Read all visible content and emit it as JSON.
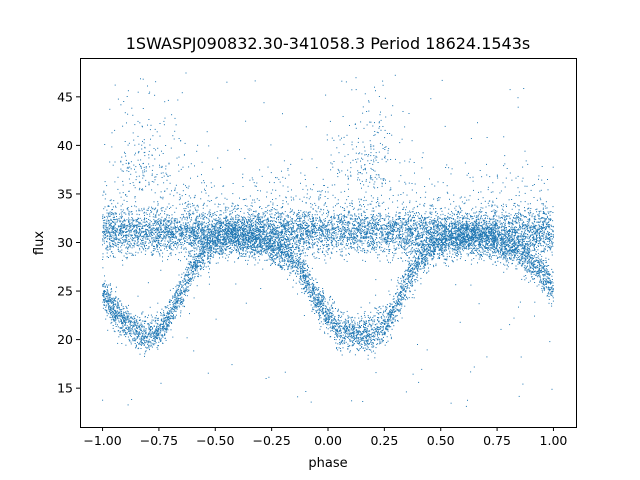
{
  "chart_data": {
    "type": "scatter",
    "title": "1SWASPJ090832.30-341058.3 Period 18624.1543s",
    "xlabel": "phase",
    "ylabel": "flux",
    "xlim": [
      -1.1,
      1.1
    ],
    "ylim": [
      11,
      49
    ],
    "xticks": [
      -1.0,
      -0.75,
      -0.5,
      -0.25,
      0.0,
      0.25,
      0.5,
      0.75,
      1.0
    ],
    "xtick_labels": [
      "−1.00",
      "−0.75",
      "−0.50",
      "−0.25",
      "0.00",
      "0.25",
      "0.50",
      "0.75",
      "1.00"
    ],
    "yticks": [
      15,
      20,
      25,
      30,
      35,
      40,
      45
    ],
    "ytick_labels": [
      "15",
      "20",
      "25",
      "30",
      "35",
      "40",
      "45"
    ],
    "grid": false,
    "marker_color": "#1f77b4",
    "series": [
      {
        "description_points": "phase-folded light curve",
        "x": [
          -1.0,
          -0.95,
          -0.9,
          -0.85,
          -0.8,
          -0.75,
          -0.7,
          -0.65,
          -0.6,
          -0.55,
          -0.5,
          -0.45,
          -0.4,
          -0.35,
          -0.3,
          -0.25,
          -0.2,
          -0.15,
          -0.1,
          -0.05,
          0.0,
          0.05,
          0.1,
          0.15,
          0.2,
          0.25,
          0.3,
          0.35,
          0.4,
          0.45,
          0.5,
          0.55,
          0.6,
          0.65,
          0.7,
          0.75,
          0.8,
          0.85,
          0.9,
          0.95,
          1.0
        ],
        "y": [
          25.0,
          23.0,
          21.8,
          20.8,
          20.5,
          20.8,
          22.5,
          25.0,
          27.5,
          29.0,
          30.0,
          30.5,
          30.6,
          30.3,
          30.0,
          29.5,
          29.0,
          28.0,
          26.5,
          24.0,
          22.5,
          21.0,
          20.6,
          20.5,
          20.6,
          21.5,
          23.5,
          26.0,
          28.0,
          29.3,
          30.0,
          30.3,
          30.5,
          30.5,
          30.3,
          30.0,
          29.5,
          29.0,
          28.0,
          27.0,
          25.0
        ]
      },
      {
        "description_points": "constant component",
        "x": [
          -1.0,
          -0.75,
          -0.5,
          -0.25,
          0.0,
          0.25,
          0.5,
          0.75,
          1.0
        ],
        "y": [
          31.0,
          31.0,
          31.0,
          31.0,
          31.0,
          31.0,
          31.0,
          31.0,
          31.0
        ]
      }
    ]
  }
}
